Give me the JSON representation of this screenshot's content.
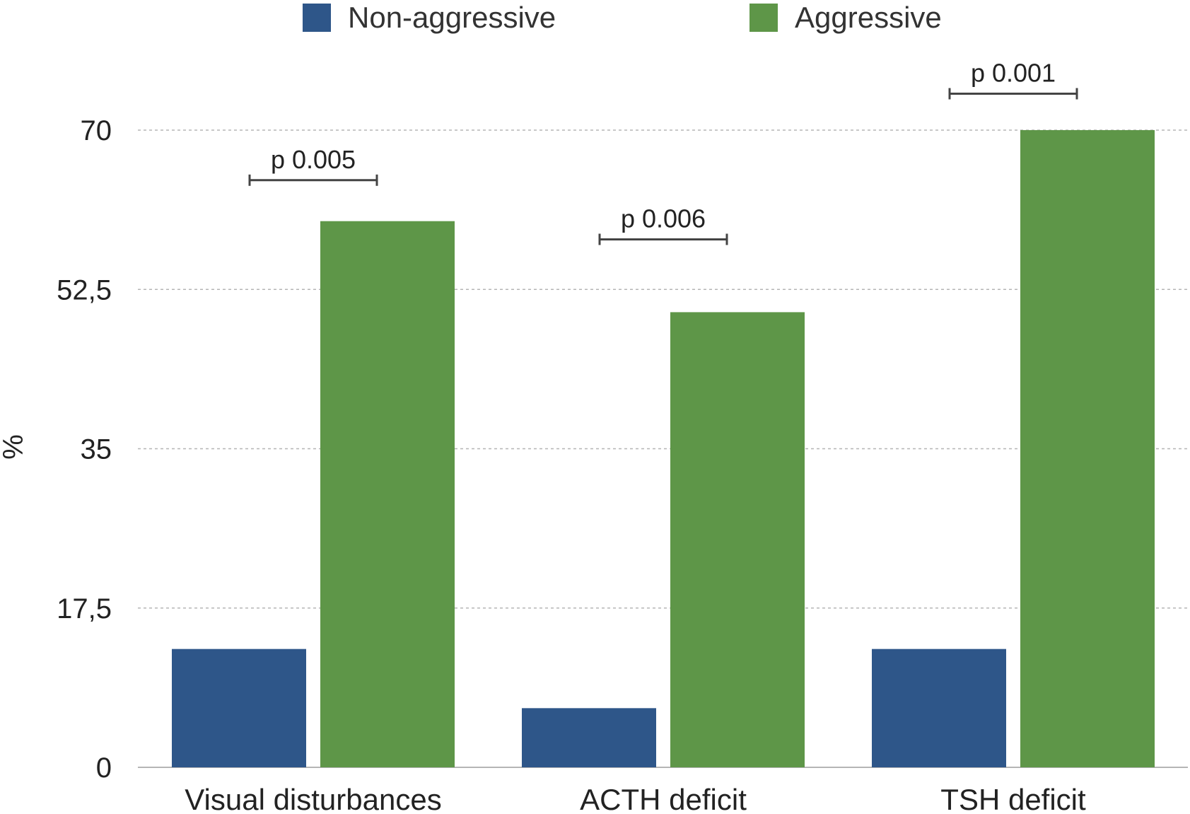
{
  "chart_data": {
    "type": "bar",
    "title": "",
    "xlabel": "",
    "ylabel": "%",
    "ylim": [
      0,
      70
    ],
    "yticks": [
      0,
      17.5,
      35,
      52.5,
      70
    ],
    "ytick_labels": [
      "0",
      "17,5",
      "35",
      "52,5",
      "70"
    ],
    "grid": true,
    "legend_position": "top-center",
    "categories": [
      "Visual disturbances",
      "ACTH deficit",
      "TSH deficit"
    ],
    "series": [
      {
        "name": "Non-aggressive",
        "color": "#2e5689",
        "values": [
          13,
          6.5,
          13
        ]
      },
      {
        "name": "Aggressive",
        "color": "#5e9648",
        "values": [
          60,
          50,
          70
        ]
      }
    ],
    "annotations": [
      {
        "category": "Visual disturbances",
        "text": "p 0.005",
        "y": 64.5
      },
      {
        "category": "ACTH deficit",
        "text": "p 0.006",
        "y": 58
      },
      {
        "category": "TSH deficit",
        "text": "p 0.001",
        "y": 74
      }
    ]
  }
}
